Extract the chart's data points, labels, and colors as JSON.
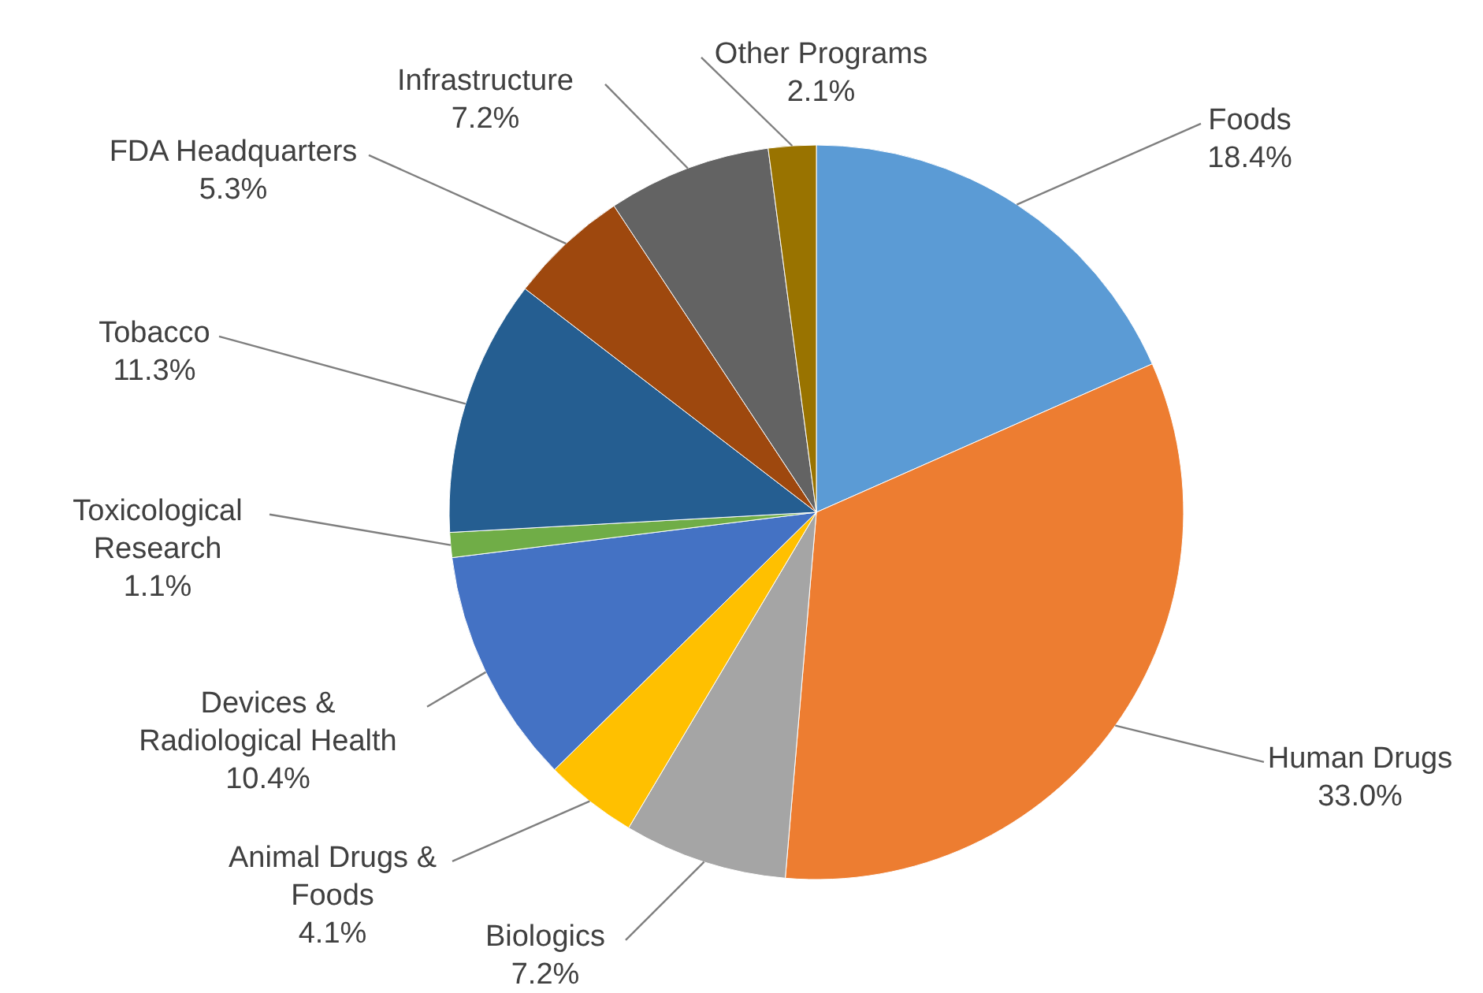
{
  "chart_data": {
    "type": "pie",
    "categories": [
      "Foods",
      "Human Drugs",
      "Biologics",
      "Animal Drugs & Foods",
      "Devices & Radiological Health",
      "Toxicological Research",
      "Tobacco",
      "FDA Headquarters",
      "Infrastructure",
      "Other Programs"
    ],
    "values": [
      18.4,
      33.0,
      7.2,
      4.1,
      10.4,
      1.1,
      11.3,
      5.3,
      7.2,
      2.1
    ],
    "value_labels": [
      "18.4%",
      "33.0%",
      "7.2%",
      "4.1%",
      "10.4%",
      "1.1%",
      "11.3%",
      "5.3%",
      "7.2%",
      "2.1%"
    ],
    "colors": [
      "#5b9bd5",
      "#ed7d31",
      "#a5a5a5",
      "#ffc000",
      "#4472c4",
      "#70ad47",
      "#255e91",
      "#9e480e",
      "#636363",
      "#997300"
    ]
  }
}
